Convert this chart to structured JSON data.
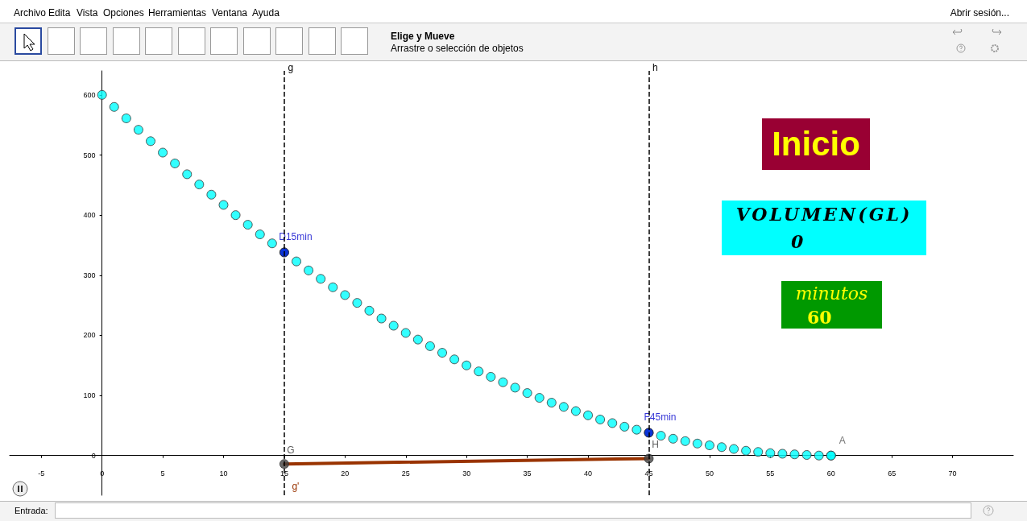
{
  "chart_data": {
    "type": "scatter",
    "xlim": [
      -7.6,
      75
    ],
    "ylim": [
      -66,
      640
    ],
    "xticks": [
      -5,
      0,
      5,
      10,
      15,
      20,
      25,
      30,
      35,
      40,
      45,
      50,
      55,
      60,
      65,
      70
    ],
    "yticks": [
      0,
      100,
      200,
      300,
      400,
      500,
      600
    ],
    "grid": false,
    "legend": false,
    "marker": "circle",
    "series": [
      {
        "color": "#00ffff",
        "x": [
          0,
          1,
          2,
          3,
          4,
          5,
          6,
          7,
          8,
          9,
          10,
          11,
          12,
          13,
          14,
          15,
          16,
          17,
          18,
          19,
          20,
          21,
          22,
          23,
          24,
          25,
          26,
          27,
          28,
          29,
          30,
          31,
          32,
          33,
          34,
          35,
          36,
          37,
          38,
          39,
          40,
          41,
          42,
          43,
          44,
          45,
          46,
          47,
          48,
          49,
          50,
          51,
          52,
          53,
          54,
          55,
          56,
          57,
          58,
          59,
          60
        ],
        "values": [
          600,
          580,
          561,
          542,
          523,
          504,
          486,
          468,
          451,
          434,
          417,
          400,
          384,
          368,
          353,
          338,
          323,
          308,
          294,
          280,
          267,
          254,
          241,
          228,
          216,
          204,
          193,
          182,
          171,
          160,
          150,
          140,
          131,
          122,
          113,
          104,
          96,
          88,
          81,
          74,
          67,
          60,
          54,
          48,
          43,
          38,
          33,
          28,
          24,
          20,
          17,
          14,
          11,
          8,
          6,
          4,
          3,
          2,
          1,
          0,
          0
        ]
      },
      {
        "type": "line",
        "name": "g'",
        "color": "#993300",
        "marker": "none",
        "x": [
          15,
          45
        ],
        "values": [
          -14,
          -5
        ]
      },
      {
        "color": "#444444",
        "x": [
          15,
          45
        ],
        "values": [
          -14,
          -5
        ],
        "value_labels": [
          "G",
          "H"
        ]
      },
      {
        "name": "D15min",
        "color": "#0000cc",
        "x": [
          15
        ],
        "values": [
          338
        ]
      },
      {
        "name": "F45min",
        "color": "#0000cc",
        "x": [
          45
        ],
        "values": [
          38
        ]
      },
      {
        "name": "A",
        "color": "#00ffff",
        "x": [
          60
        ],
        "values": [
          0
        ]
      }
    ],
    "ref_lines": [
      {
        "axis": "x",
        "value": 15,
        "label": "g",
        "color": "#000000",
        "line_style": "dashed"
      },
      {
        "axis": "x",
        "value": 45,
        "label": "h",
        "color": "#000000",
        "line_style": "dashed"
      }
    ],
    "annotations": [
      "Archivo",
      "Edita",
      "Vista",
      "Opciones",
      "Herramientas",
      "Ventana",
      "Ayuda",
      "Abrir sesión...",
      "Elige y Mueve",
      "Arrastre o selección de objetos",
      "Inicio",
      "VOLUMEN(GL)",
      "0",
      "minutos",
      "60",
      "Entrada:"
    ]
  }
}
